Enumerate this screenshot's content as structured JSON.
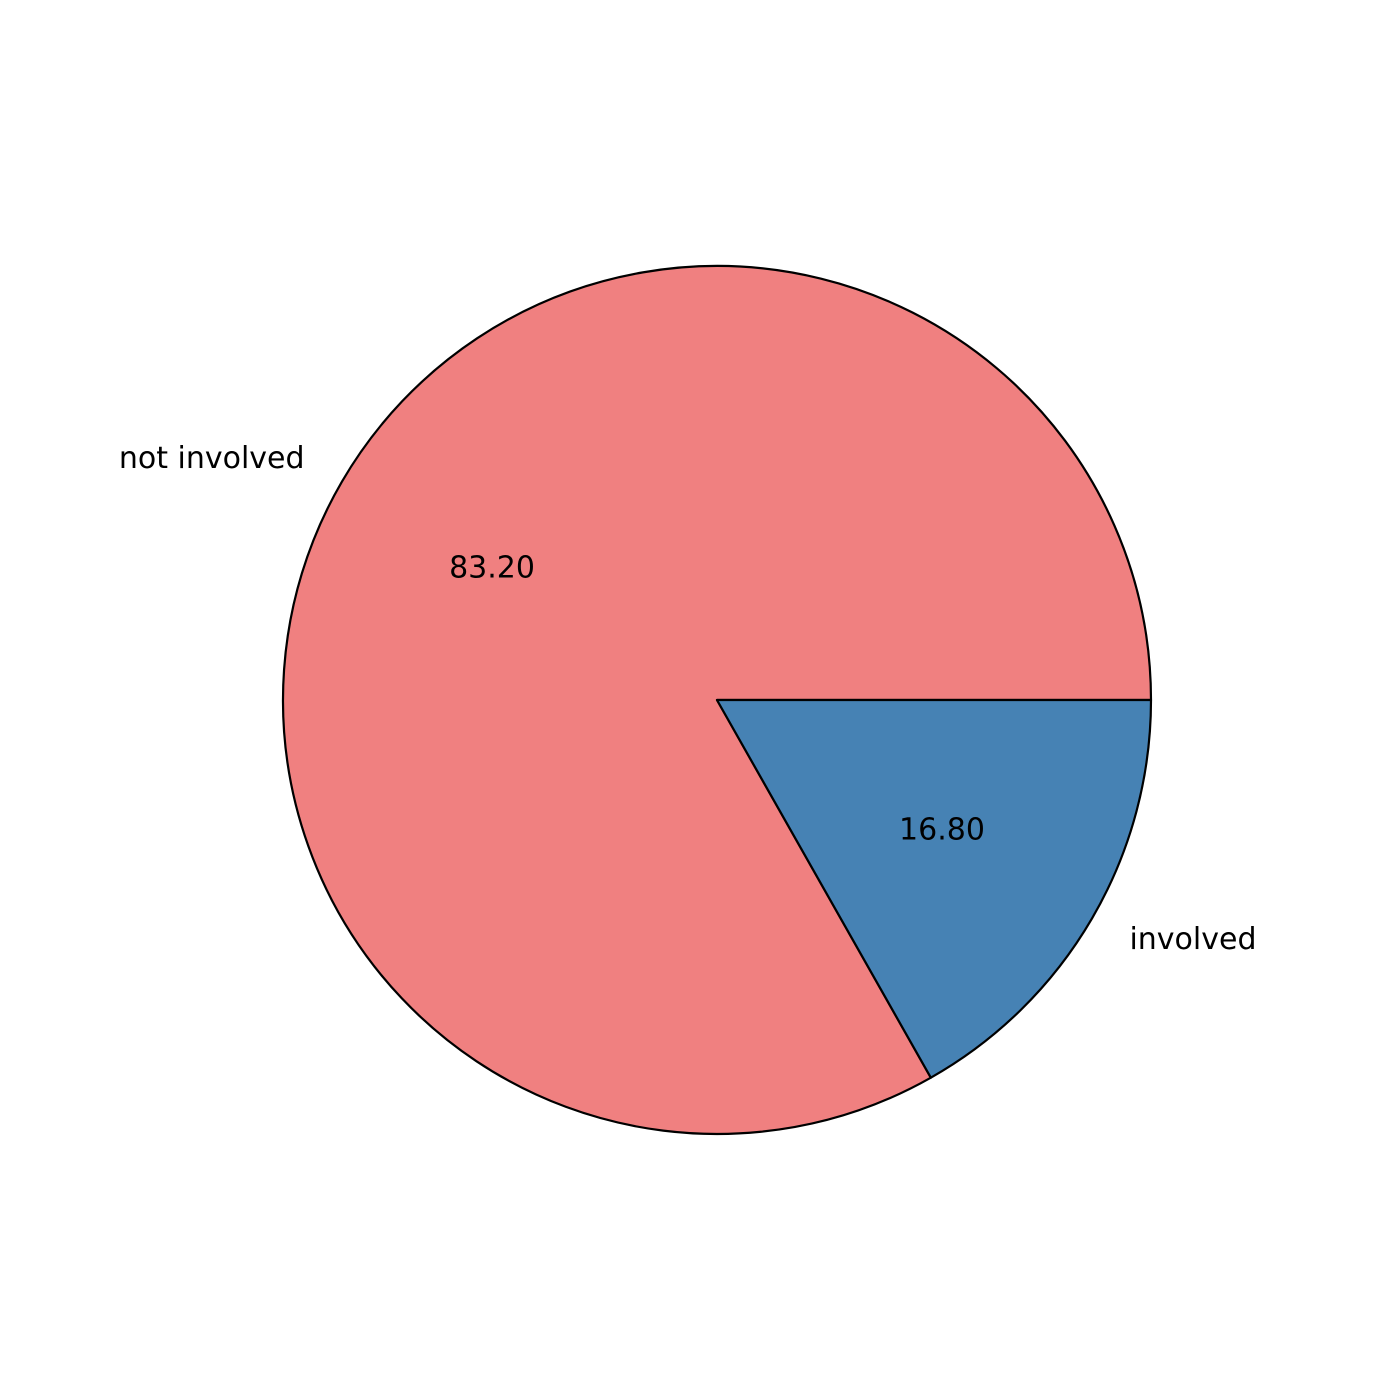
{
  "chart_data": {
    "type": "pie",
    "title": "",
    "categories": [
      "not involved",
      "involved"
    ],
    "values": [
      83.2,
      16.8
    ],
    "value_labels": [
      "83.20",
      "16.80"
    ],
    "colors": [
      "#f08080",
      "#4682b4"
    ],
    "edge_color": "#000000",
    "start_angle_deg": 0,
    "direction": "counterclockwise",
    "legend": "none"
  }
}
